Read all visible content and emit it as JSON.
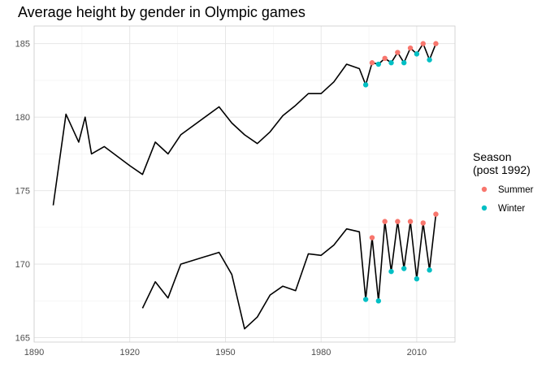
{
  "chart_data": {
    "type": "line",
    "title": "Average height by gender in Olympic games",
    "xlabel": "",
    "ylabel": "",
    "xlim": [
      1890,
      2022
    ],
    "ylim": [
      164.7,
      186.2
    ],
    "x_ticks": [
      1890,
      1920,
      1950,
      1980,
      2010
    ],
    "y_ticks": [
      165,
      170,
      175,
      180,
      185
    ],
    "grid": true,
    "legend": {
      "title_lines": [
        "Season",
        "(post 1992)"
      ],
      "placement": "right",
      "entries": [
        {
          "label": "Summer",
          "color": "#F8766D"
        },
        {
          "label": "Winter",
          "color": "#00BFC4"
        }
      ]
    },
    "series": [
      {
        "group": "upper",
        "x": [
          1896,
          1900,
          1904,
          1906,
          1908,
          1912,
          1920,
          1924,
          1928,
          1932,
          1936,
          1948,
          1952,
          1956,
          1960,
          1964,
          1968,
          1972,
          1976,
          1980,
          1984,
          1988,
          1992,
          1994,
          1996,
          1998,
          2000,
          2002,
          2004,
          2006,
          2008,
          2010,
          2012,
          2014,
          2016
        ],
        "y": [
          174.0,
          180.2,
          178.3,
          180.0,
          177.5,
          178.0,
          176.7,
          176.1,
          178.3,
          177.5,
          178.8,
          180.7,
          179.6,
          178.8,
          178.2,
          179.0,
          180.1,
          180.8,
          181.6,
          181.6,
          182.4,
          183.6,
          183.3,
          182.2,
          183.7,
          183.6,
          184.0,
          183.7,
          184.4,
          183.7,
          184.7,
          184.3,
          185.0,
          183.9,
          185.0
        ]
      },
      {
        "group": "lower",
        "x": [
          1924,
          1928,
          1932,
          1936,
          1948,
          1952,
          1956,
          1960,
          1964,
          1968,
          1972,
          1976,
          1980,
          1984,
          1988,
          1992,
          1994,
          1996,
          1998,
          2000,
          2002,
          2004,
          2006,
          2008,
          2010,
          2012,
          2014,
          2016
        ],
        "y": [
          167.0,
          168.8,
          167.7,
          170.0,
          170.8,
          169.3,
          165.6,
          166.4,
          167.9,
          168.5,
          168.2,
          170.7,
          170.6,
          171.3,
          172.4,
          172.2,
          167.6,
          171.8,
          167.5,
          172.9,
          169.5,
          172.9,
          169.7,
          172.9,
          169.0,
          172.8,
          169.6,
          173.4
        ]
      }
    ],
    "points": [
      {
        "x": 1994,
        "y": 182.2,
        "season": "Winter"
      },
      {
        "x": 1996,
        "y": 183.7,
        "season": "Summer"
      },
      {
        "x": 1998,
        "y": 183.6,
        "season": "Winter"
      },
      {
        "x": 2000,
        "y": 184.0,
        "season": "Summer"
      },
      {
        "x": 2002,
        "y": 183.7,
        "season": "Winter"
      },
      {
        "x": 2004,
        "y": 184.4,
        "season": "Summer"
      },
      {
        "x": 2006,
        "y": 183.7,
        "season": "Winter"
      },
      {
        "x": 2008,
        "y": 184.7,
        "season": "Summer"
      },
      {
        "x": 2010,
        "y": 184.3,
        "season": "Winter"
      },
      {
        "x": 2012,
        "y": 185.0,
        "season": "Summer"
      },
      {
        "x": 2014,
        "y": 183.9,
        "season": "Winter"
      },
      {
        "x": 2016,
        "y": 185.0,
        "season": "Summer"
      },
      {
        "x": 1994,
        "y": 167.6,
        "season": "Winter"
      },
      {
        "x": 1996,
        "y": 171.8,
        "season": "Summer"
      },
      {
        "x": 1998,
        "y": 167.5,
        "season": "Winter"
      },
      {
        "x": 2000,
        "y": 172.9,
        "season": "Summer"
      },
      {
        "x": 2002,
        "y": 169.5,
        "season": "Winter"
      },
      {
        "x": 2004,
        "y": 172.9,
        "season": "Summer"
      },
      {
        "x": 2006,
        "y": 169.7,
        "season": "Winter"
      },
      {
        "x": 2008,
        "y": 172.9,
        "season": "Summer"
      },
      {
        "x": 2010,
        "y": 169.0,
        "season": "Winter"
      },
      {
        "x": 2012,
        "y": 172.8,
        "season": "Summer"
      },
      {
        "x": 2014,
        "y": 169.6,
        "season": "Winter"
      },
      {
        "x": 2016,
        "y": 173.4,
        "season": "Summer"
      }
    ]
  }
}
